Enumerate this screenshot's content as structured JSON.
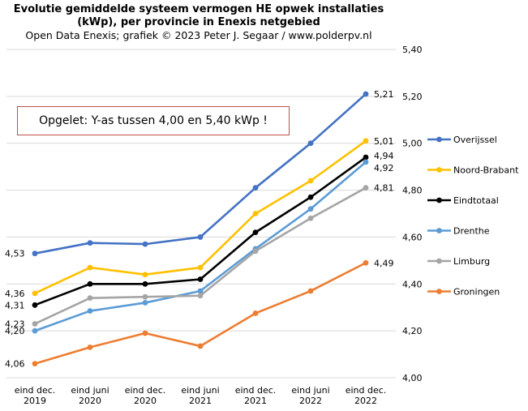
{
  "chart_data": {
    "type": "line",
    "title_line1": "Evolutie gemiddelde systeem vermogen HE opwek installaties",
    "title_line2": "(kWp), per provincie in  Enexis netgebied",
    "subtitle": "Open Data Enexis;  grafiek © 2023  Peter J. Segaar / www.polderpv.nl",
    "annotation": "Opgelet: Y-as tussen 4,00 en 5,40 kWp !",
    "ylim": [
      4.0,
      5.4
    ],
    "yticks": [
      "4,00",
      "4,20",
      "4,40",
      "4,60",
      "4,80",
      "5,00",
      "5,20",
      "5,40"
    ],
    "grid": true,
    "legend_position": "right",
    "categories": [
      [
        "eind dec.",
        "2019"
      ],
      [
        "eind juni",
        "2020"
      ],
      [
        "eind dec.",
        "2020"
      ],
      [
        "eind juni",
        "2021"
      ],
      [
        "eind dec.",
        "2021"
      ],
      [
        "eind juni",
        "2022"
      ],
      [
        "eind dec.",
        "2022"
      ]
    ],
    "series": [
      {
        "name": "Overijssel",
        "color": "#4472c4",
        "values": [
          4.53,
          4.575,
          4.57,
          4.6,
          4.81,
          5.0,
          5.21
        ],
        "first_label": "4,53",
        "last_label": "5,21"
      },
      {
        "name": "Noord-Brabant",
        "color": "#ffc000",
        "values": [
          4.36,
          4.47,
          4.44,
          4.47,
          4.7,
          4.84,
          5.01
        ],
        "first_label": "4,36",
        "last_label": "5,01"
      },
      {
        "name": "Eindtotaal",
        "color": "#000000",
        "values": [
          4.31,
          4.4,
          4.4,
          4.42,
          4.62,
          4.77,
          4.94
        ],
        "first_label": "4,31",
        "last_label": "4,94"
      },
      {
        "name": "Drenthe",
        "color": "#5b9bd5",
        "values": [
          4.2,
          4.285,
          4.32,
          4.37,
          4.55,
          4.72,
          4.92
        ],
        "first_label": "4,20",
        "last_label": "4,92"
      },
      {
        "name": "Limburg",
        "color": "#a5a5a5",
        "values": [
          4.23,
          4.34,
          4.345,
          4.35,
          4.54,
          4.68,
          4.81
        ],
        "first_label": "4,23",
        "last_label": "4,81"
      },
      {
        "name": "Groningen",
        "color": "#ed7d31",
        "values": [
          4.06,
          4.13,
          4.19,
          4.135,
          4.275,
          4.37,
          4.49
        ],
        "first_label": "4,06",
        "last_label": "4,49"
      }
    ]
  }
}
